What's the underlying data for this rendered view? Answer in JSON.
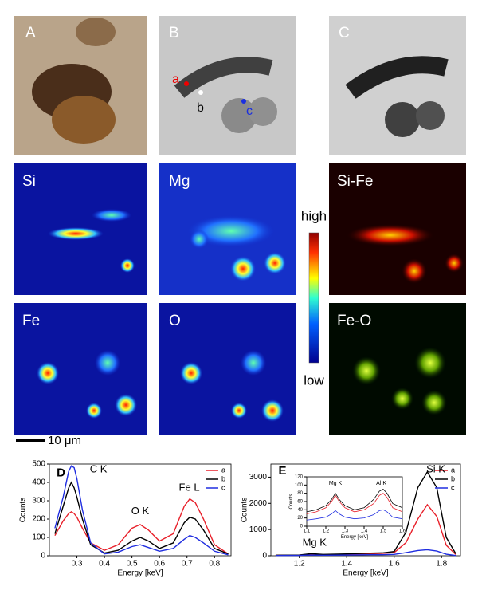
{
  "panels": {
    "a": "A",
    "b": "B",
    "c": "C",
    "si": "Si",
    "mg": "Mg",
    "sife": "Si-Fe",
    "fe": "Fe",
    "o": "O",
    "feo": "Fe-O",
    "spot_a": "a",
    "spot_b": "b",
    "spot_c": "c"
  },
  "colorbar": {
    "high": "high",
    "low": "low"
  },
  "scale_bar": "10 μm",
  "chart_data": [
    {
      "type": "line",
      "label": "D",
      "ylabel": "Counts",
      "xlabel": "Energy [keV]",
      "annotations": [
        "C K",
        "O K",
        "Fe L"
      ],
      "legend": "upper right",
      "xlim": [
        0.2,
        0.86
      ],
      "ylim": [
        0,
        500
      ],
      "xticks": [
        0.3,
        0.4,
        0.5,
        0.6,
        0.7,
        0.8
      ],
      "yticks": [
        0,
        100,
        200,
        300,
        400,
        500
      ],
      "x": [
        0.22,
        0.25,
        0.27,
        0.28,
        0.29,
        0.3,
        0.32,
        0.35,
        0.4,
        0.45,
        0.5,
        0.53,
        0.56,
        0.6,
        0.65,
        0.69,
        0.71,
        0.73,
        0.76,
        0.8,
        0.85
      ],
      "series": [
        {
          "name": "a",
          "color": "#e8202a",
          "values": [
            110,
            190,
            230,
            240,
            230,
            210,
            150,
            70,
            30,
            60,
            150,
            170,
            140,
            80,
            120,
            270,
            310,
            290,
            200,
            60,
            10
          ]
        },
        {
          "name": "b",
          "color": "#000000",
          "values": [
            120,
            270,
            370,
            400,
            370,
            320,
            200,
            60,
            15,
            30,
            80,
            100,
            80,
            40,
            70,
            180,
            210,
            200,
            140,
            40,
            10
          ]
        },
        {
          "name": "c",
          "color": "#1f2de0",
          "values": [
            150,
            320,
            460,
            490,
            480,
            420,
            250,
            70,
            10,
            20,
            50,
            60,
            45,
            25,
            40,
            90,
            110,
            100,
            70,
            25,
            5
          ]
        }
      ]
    },
    {
      "type": "line",
      "label": "E",
      "ylabel": "Counts",
      "xlabel": "Energy [keV]",
      "annotations": [
        "Si K",
        "Mg K"
      ],
      "legend": "upper right",
      "xlim": [
        1.08,
        1.88
      ],
      "ylim": [
        0,
        3500
      ],
      "xticks": [
        1.2,
        1.4,
        1.6,
        1.8
      ],
      "yticks": [
        0,
        1000,
        2000,
        3000
      ],
      "x": [
        1.1,
        1.2,
        1.25,
        1.3,
        1.4,
        1.5,
        1.55,
        1.6,
        1.65,
        1.7,
        1.74,
        1.78,
        1.82,
        1.86
      ],
      "series": [
        {
          "name": "a",
          "color": "#e8202a",
          "values": [
            20,
            30,
            60,
            40,
            60,
            80,
            90,
            120,
            500,
            1400,
            1950,
            1500,
            400,
            50
          ]
        },
        {
          "name": "b",
          "color": "#000000",
          "values": [
            20,
            30,
            80,
            50,
            70,
            100,
            110,
            160,
            900,
            2600,
            3200,
            2600,
            700,
            80
          ]
        },
        {
          "name": "c",
          "color": "#1f2de0",
          "values": [
            10,
            15,
            30,
            20,
            30,
            40,
            40,
            50,
            120,
            200,
            230,
            180,
            60,
            10
          ]
        }
      ]
    },
    {
      "type": "line",
      "ylabel": "Counts",
      "xlabel": "Energy [keV]",
      "annotations": [
        "Mg K",
        "Al K"
      ],
      "xlim": [
        1.1,
        1.6
      ],
      "ylim": [
        0,
        120
      ],
      "xticks": [
        1.1,
        1.2,
        1.3,
        1.4,
        1.5,
        1.6
      ],
      "yticks": [
        0,
        20,
        40,
        60,
        80,
        100,
        120
      ],
      "x": [
        1.1,
        1.15,
        1.2,
        1.23,
        1.25,
        1.27,
        1.3,
        1.35,
        1.4,
        1.45,
        1.48,
        1.5,
        1.52,
        1.55,
        1.6
      ],
      "series": [
        {
          "color": "#e8202a",
          "values": [
            30,
            35,
            45,
            60,
            75,
            60,
            45,
            35,
            40,
            55,
            75,
            80,
            70,
            45,
            35
          ]
        },
        {
          "color": "#000000",
          "values": [
            35,
            40,
            50,
            65,
            80,
            65,
            50,
            40,
            45,
            65,
            85,
            90,
            80,
            55,
            45
          ]
        },
        {
          "color": "#1f2de0",
          "values": [
            15,
            18,
            22,
            30,
            38,
            30,
            22,
            18,
            20,
            28,
            38,
            40,
            35,
            22,
            18
          ]
        }
      ]
    }
  ]
}
